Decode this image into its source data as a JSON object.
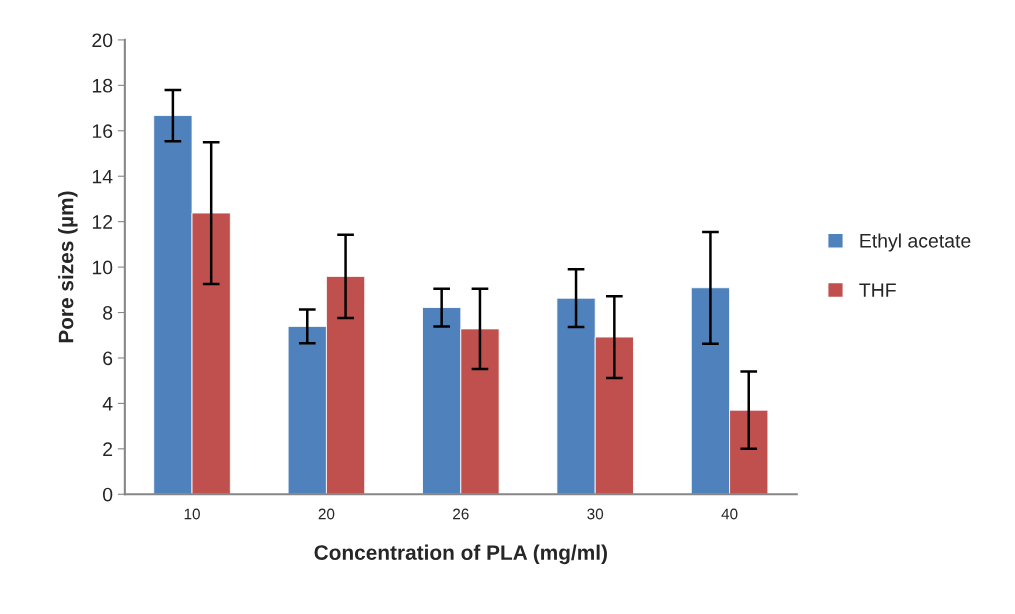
{
  "chart_data": {
    "type": "bar",
    "xlabel": "Concentration of PLA (mg/ml)",
    "ylabel": "Pore sizes (µm)",
    "categories": [
      "10",
      "20",
      "26",
      "30",
      "40"
    ],
    "series": [
      {
        "name": "Ethyl acetate",
        "color": "#4f81bd",
        "values": [
          16.67,
          7.39,
          8.22,
          8.63,
          9.09
        ],
        "errors": [
          1.13,
          0.74,
          0.83,
          1.27,
          2.46
        ]
      },
      {
        "name": "THF",
        "color": "#c0504d",
        "values": [
          12.38,
          9.59,
          7.28,
          6.92,
          3.7
        ],
        "errors": [
          3.12,
          1.83,
          1.77,
          1.8,
          1.7
        ]
      }
    ],
    "ylim": [
      0,
      20
    ],
    "yticks": [
      0,
      2,
      4,
      6,
      8,
      10,
      12,
      14,
      16,
      18,
      20
    ],
    "grid": false,
    "legend": "right"
  }
}
